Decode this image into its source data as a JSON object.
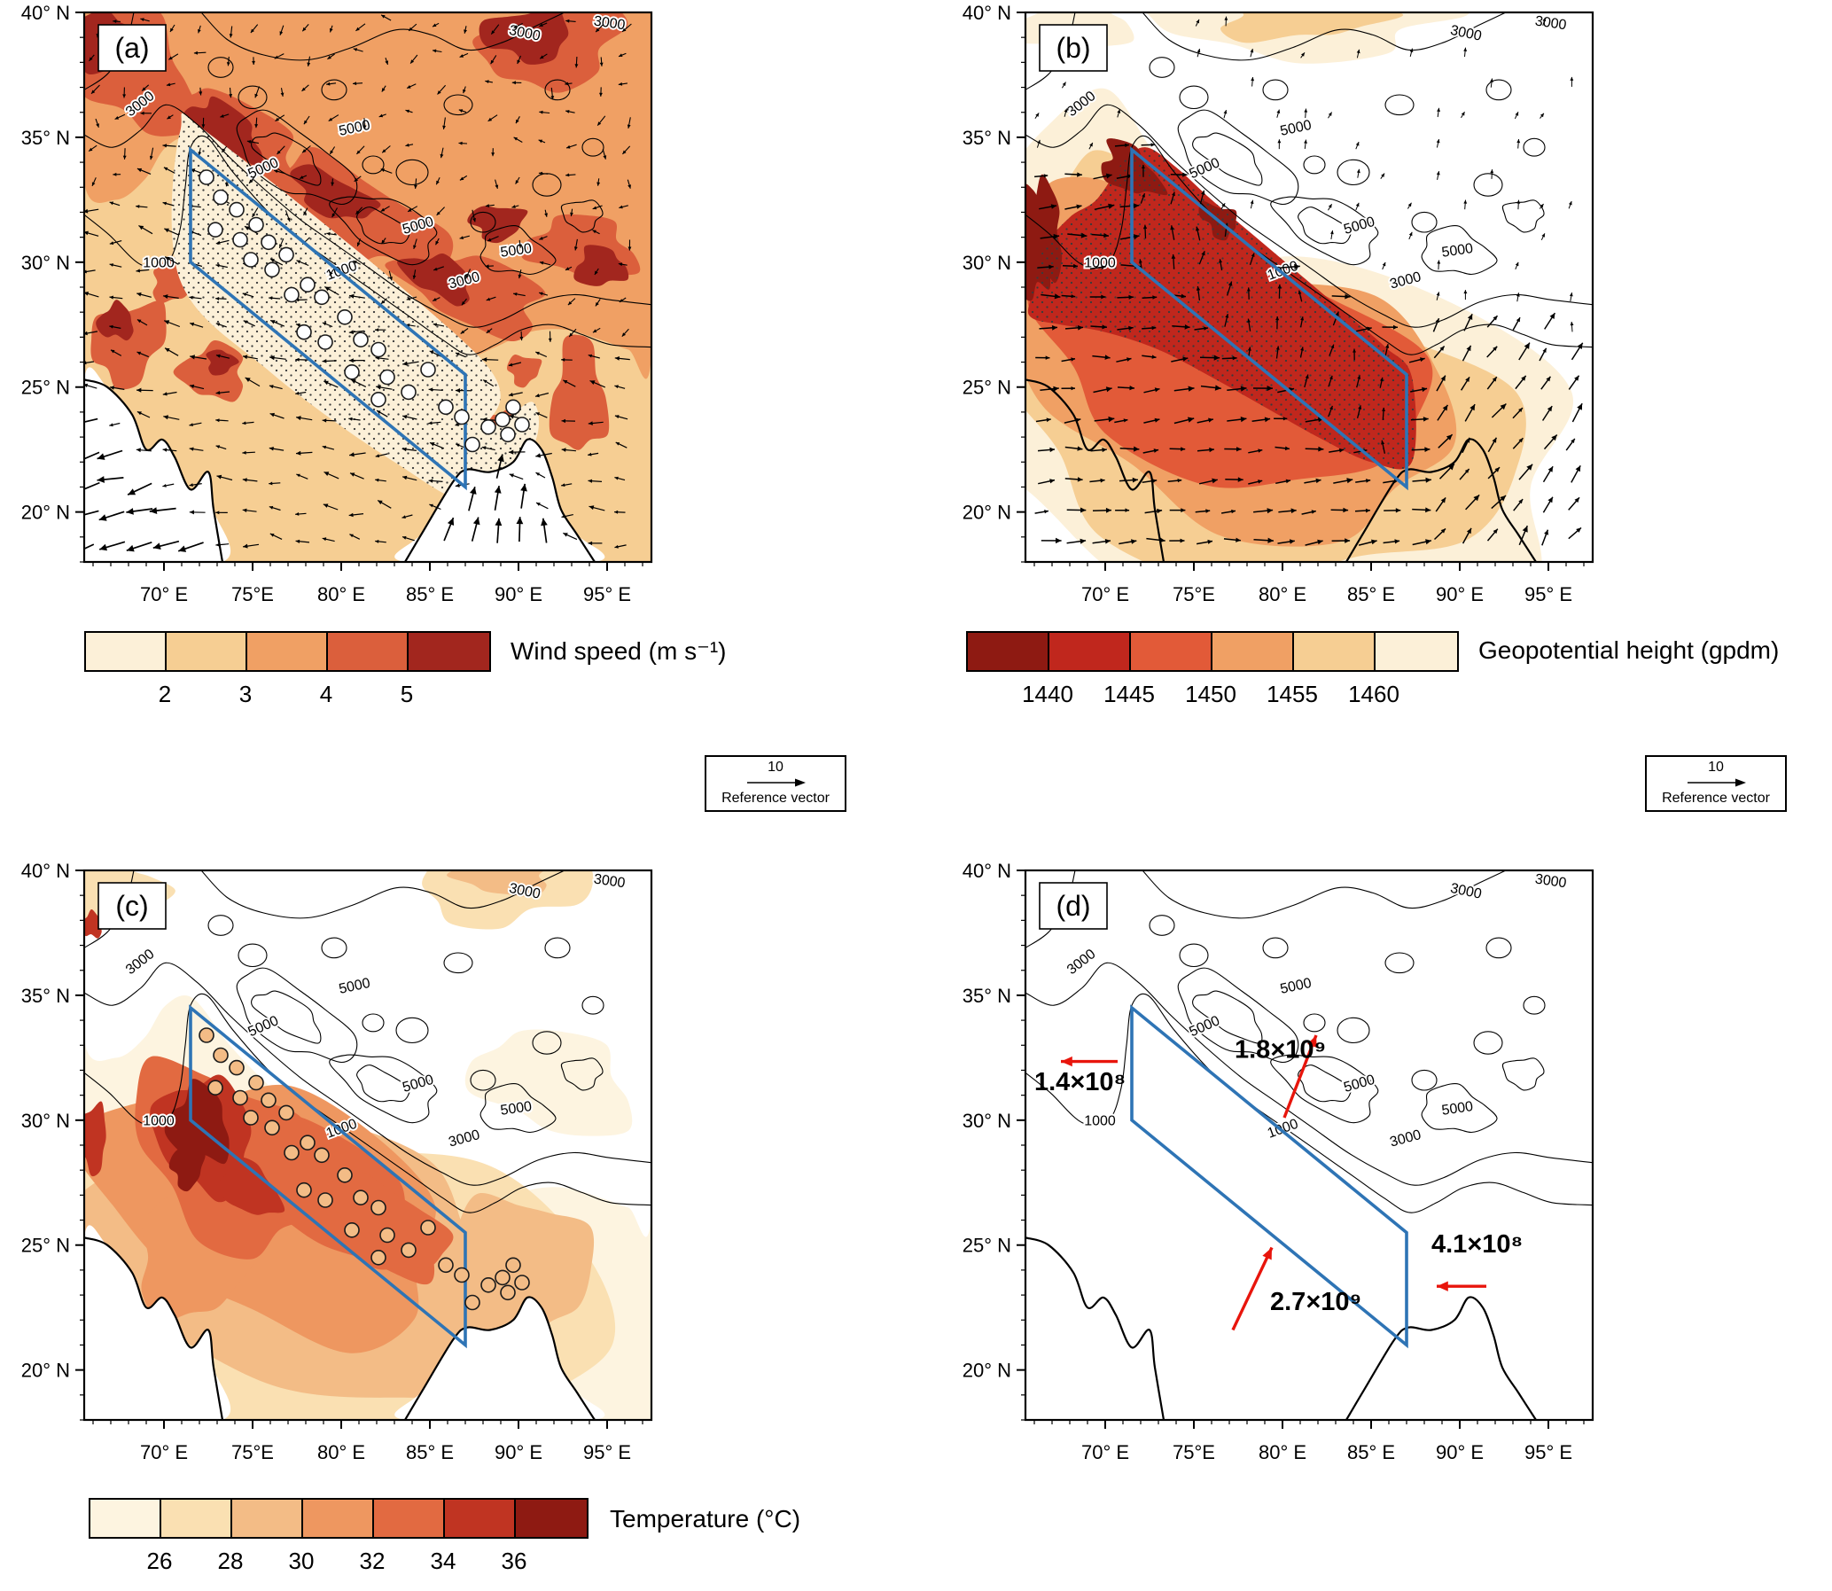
{
  "map": {
    "lon_range": [
      65.5,
      97.5
    ],
    "lat_range": [
      18,
      40
    ],
    "x_tick_labels": [
      {
        "lon": 70,
        "label": "70° E"
      },
      {
        "lon": 75,
        "label": "75°E"
      },
      {
        "lon": 80,
        "label": "80° E"
      },
      {
        "lon": 85,
        "label": "85° E"
      },
      {
        "lon": 90,
        "label": "90° E"
      },
      {
        "lon": 95,
        "label": "95° E"
      }
    ],
    "y_tick_labels": [
      {
        "lat": 40,
        "label": "40° N"
      },
      {
        "lat": 35,
        "label": "35° N"
      },
      {
        "lat": 30,
        "label": "30° N"
      },
      {
        "lat": 25,
        "label": "25° N"
      },
      {
        "lat": 20,
        "label": "20° N"
      }
    ],
    "terrain_contour_labels": [
      "1000",
      "3000",
      "5000"
    ],
    "region_box": {
      "color": "#2E74B5",
      "corners_lonlat": [
        [
          71.5,
          34.5
        ],
        [
          87,
          25.5
        ],
        [
          87,
          21
        ],
        [
          71.5,
          30
        ]
      ]
    },
    "stations_lonlat": [
      [
        72.4,
        33.4
      ],
      [
        73.2,
        32.6
      ],
      [
        74.1,
        32.1
      ],
      [
        72.9,
        31.3
      ],
      [
        74.3,
        30.9
      ],
      [
        75.2,
        31.5
      ],
      [
        75.9,
        30.8
      ],
      [
        74.9,
        30.1
      ],
      [
        76.1,
        29.7
      ],
      [
        76.9,
        30.3
      ],
      [
        77.2,
        28.7
      ],
      [
        78.1,
        29.1
      ],
      [
        78.9,
        28.6
      ],
      [
        77.9,
        27.2
      ],
      [
        79.1,
        26.8
      ],
      [
        80.2,
        27.8
      ],
      [
        81.1,
        26.9
      ],
      [
        82.1,
        26.5
      ],
      [
        80.6,
        25.6
      ],
      [
        82.6,
        25.4
      ],
      [
        83.8,
        24.8
      ],
      [
        84.9,
        25.7
      ],
      [
        82.1,
        24.5
      ],
      [
        85.9,
        24.2
      ],
      [
        86.8,
        23.8
      ],
      [
        87.4,
        22.7
      ],
      [
        88.3,
        23.4
      ],
      [
        89.1,
        23.7
      ],
      [
        89.7,
        24.2
      ],
      [
        90.2,
        23.5
      ],
      [
        89.4,
        23.1
      ]
    ]
  },
  "chart_data": [
    {
      "panel": "a",
      "type": "heatmap",
      "title": "(a)",
      "variable": "Wind speed",
      "units": "m s⁻¹",
      "colorbar_title": "Wind speed (m s⁻¹)",
      "colorbar_tick_labels": [
        "2",
        "3",
        "4",
        "5"
      ],
      "colorbar_colors": [
        "#FCF0D8",
        "#F6CE93",
        "#F0A064",
        "#DB5F3C",
        "#A2261E"
      ],
      "reference_vector_value": "10",
      "reference_vector_label": "Reference vector",
      "overlays": [
        "wind vectors",
        "terrain height contours 1000/3000/5000",
        "station circles",
        "study region box",
        "stippling over Indo-Gangetic Plain"
      ]
    },
    {
      "panel": "b",
      "type": "heatmap",
      "title": "(b)",
      "variable": "Geopotential height",
      "units": "gpdm",
      "colorbar_title": "Geopotential height (gpdm)",
      "colorbar_tick_labels": [
        "1440",
        "1445",
        "1450",
        "1455",
        "1460"
      ],
      "colorbar_colors": [
        "#8E1A12",
        "#C0271D",
        "#E25A38",
        "#F0A064",
        "#F6CE93",
        "#FCF0D8"
      ],
      "reference_vector_value": "10",
      "reference_vector_label": "Reference vector",
      "overlays": [
        "wind vectors",
        "terrain height contours 1000/3000/5000",
        "study region box",
        "stippling over low geopotential core"
      ]
    },
    {
      "panel": "c",
      "type": "heatmap",
      "title": "(c)",
      "variable": "Temperature",
      "units": "°C",
      "colorbar_title": "Temperature (°C)",
      "colorbar_tick_labels": [
        "26",
        "28",
        "30",
        "32",
        "34",
        "36"
      ],
      "colorbar_colors": [
        "#FDF4E0",
        "#FAE0B2",
        "#F3BC86",
        "#EE9760",
        "#E26A41",
        "#C03422",
        "#8E1A12"
      ],
      "overlays": [
        "terrain height contours 1000/3000/5000",
        "station circles",
        "study region box"
      ]
    },
    {
      "panel": "d",
      "type": "map",
      "title": "(d)",
      "variable": "Fluxes across study-region boundaries",
      "fluxes": [
        {
          "label": "1.4×10⁸",
          "direction": "westward, out of west end of region",
          "lon": 66.0,
          "lat": 31.2
        },
        {
          "label": "1.8×10⁹",
          "direction": "northeastward, across Himalayan side",
          "lon": 77.3,
          "lat": 32.5
        },
        {
          "label": "2.7×10⁹",
          "direction": "northeastward, into southern side of region",
          "lon": 79.3,
          "lat": 22.4
        },
        {
          "label": "4.1×10⁸",
          "direction": "westward, into east end of region",
          "lon": 88.4,
          "lat": 24.7
        }
      ],
      "overlays": [
        "terrain height contours 1000/3000/5000",
        "study region box",
        "red flux arrows"
      ]
    }
  ]
}
